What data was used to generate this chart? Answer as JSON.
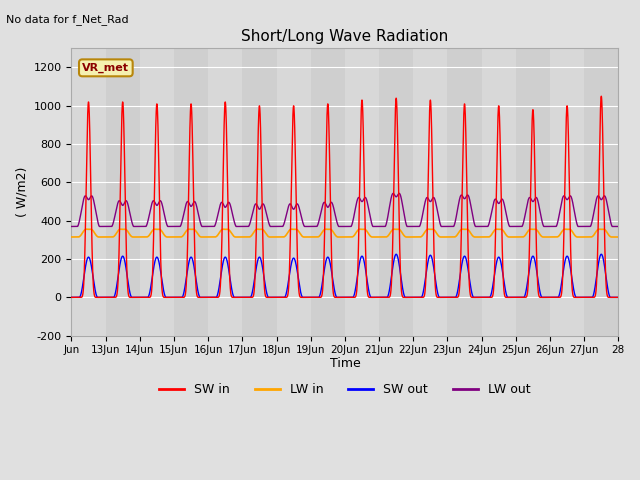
{
  "title": "Short/Long Wave Radiation",
  "subtitle": "No data for f_Net_Rad",
  "ylabel": "( W/m2)",
  "xlabel": "Time",
  "ylim": [
    -200,
    1300
  ],
  "xlim": [
    0,
    16
  ],
  "xtick_labels": [
    "Jun",
    "13Jun",
    "14Jun",
    "15Jun",
    "16Jun",
    "17Jun",
    "18Jun",
    "19Jun",
    "20Jun",
    "21Jun",
    "22Jun",
    "23Jun",
    "24Jun",
    "25Jun",
    "26Jun",
    "27Jun",
    "28"
  ],
  "xtick_positions": [
    0,
    1,
    2,
    3,
    4,
    5,
    6,
    7,
    8,
    9,
    10,
    11,
    12,
    13,
    14,
    15,
    16
  ],
  "ytick_values": [
    -200,
    0,
    200,
    400,
    600,
    800,
    1000,
    1200
  ],
  "bg_color": "#e0e0e0",
  "plot_bg_color": "#d8d8d8",
  "sw_in_color": "red",
  "lw_in_color": "orange",
  "sw_out_color": "blue",
  "lw_out_color": "purple",
  "legend_label": "VR_met",
  "sw_in_peaks": [
    1020,
    1020,
    1010,
    1010,
    1020,
    1000,
    1000,
    1010,
    1030,
    1040,
    1030,
    1010,
    1000,
    980,
    1000,
    1050
  ],
  "sw_out_peaks": [
    210,
    215,
    210,
    210,
    210,
    210,
    205,
    210,
    215,
    225,
    220,
    215,
    210,
    215,
    215,
    225
  ],
  "lw_in_base": 315,
  "lw_out_base": 370,
  "lw_out_peaks": [
    590,
    560,
    560,
    555,
    550,
    540,
    540,
    550,
    580,
    605,
    580,
    595,
    570,
    580,
    590,
    590
  ]
}
